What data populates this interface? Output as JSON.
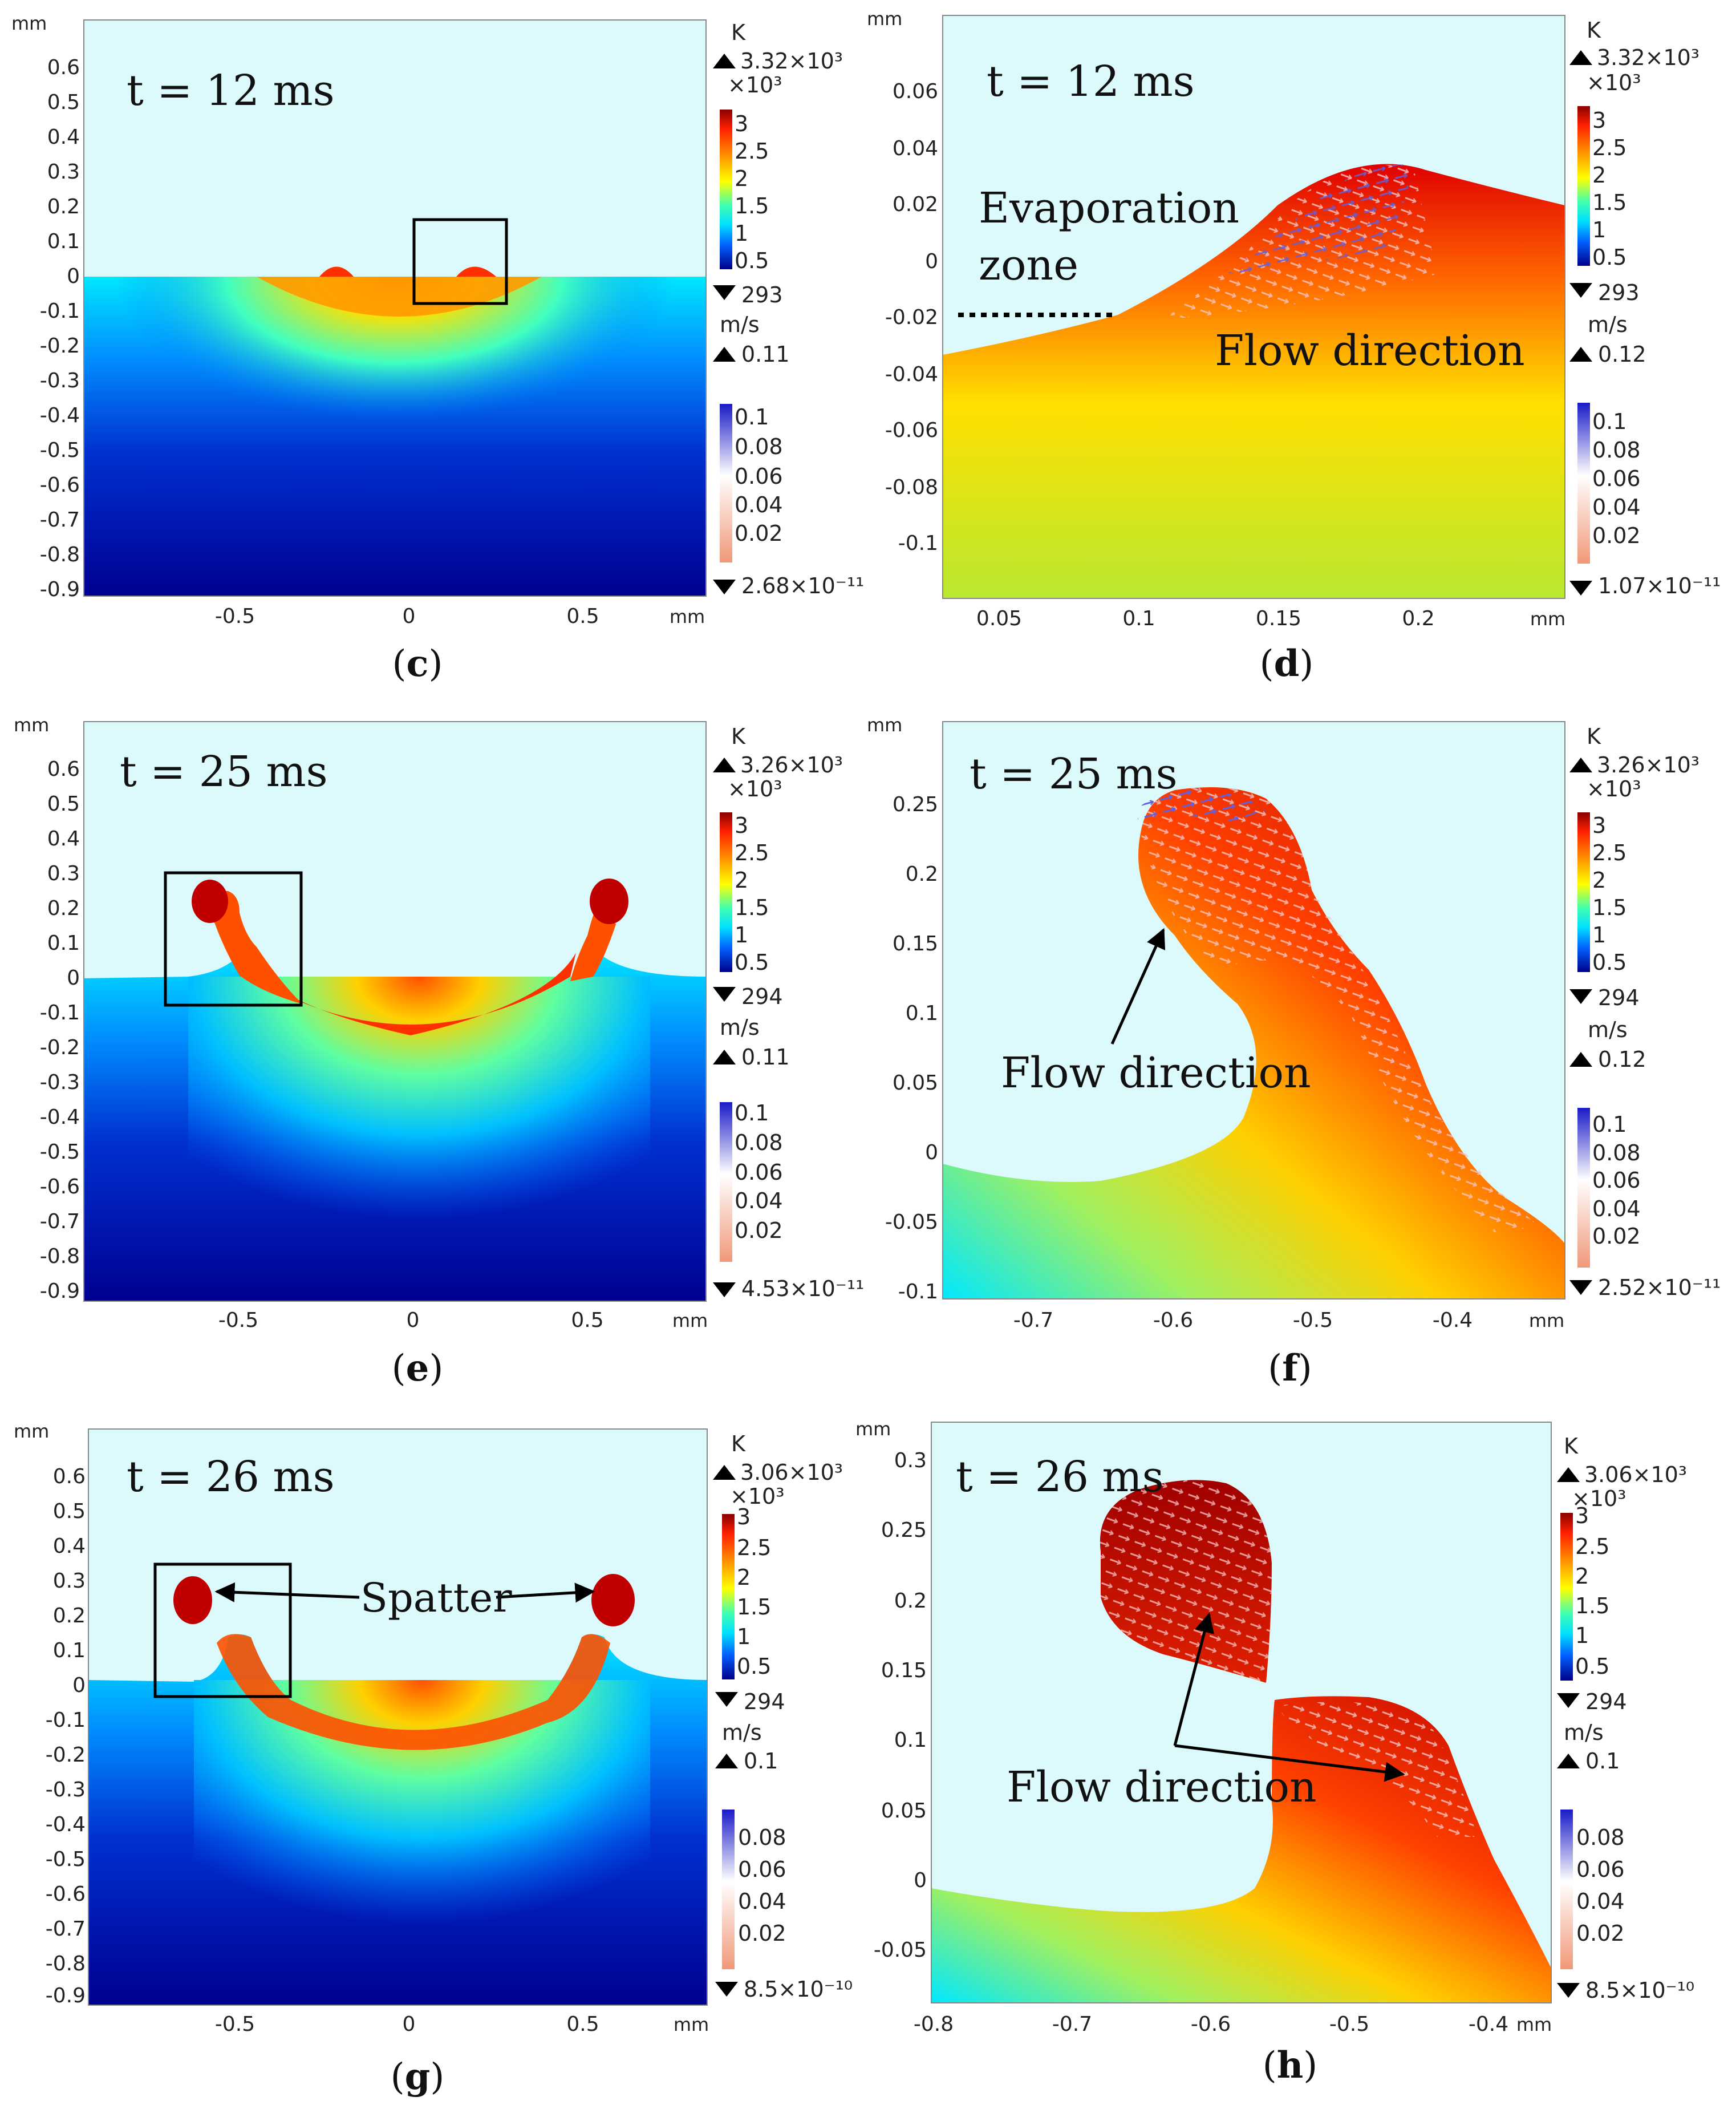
{
  "panels": [
    {
      "id": "c",
      "caption_open": "(",
      "caption_letter": "c",
      "caption_close": ")",
      "time_label": "t = 12 ms",
      "y_unit": "mm",
      "x_unit": "mm",
      "y_ticks": [
        "0.6",
        "0.5",
        "0.4",
        "0.3",
        "0.2",
        "0.1",
        "0",
        "-0.1",
        "-0.2",
        "-0.3",
        "-0.4",
        "-0.5",
        "-0.6",
        "-0.7",
        "-0.8",
        "-0.9"
      ],
      "x_ticks": [
        "-0.5",
        "0",
        "0.5"
      ],
      "temp_unit": "K",
      "temp_max": "3.32×10³",
      "temp_scale": "×10³",
      "temp_ticks": [
        "3",
        "2.5",
        "2",
        "1.5",
        "1",
        "0.5"
      ],
      "temp_min": "293",
      "vel_unit": "m/s",
      "vel_max": "0.11",
      "vel_ticks": [
        "0.1",
        "0.08",
        "0.06",
        "0.04",
        "0.02"
      ],
      "vel_min": "2.68×10⁻¹¹"
    },
    {
      "id": "d",
      "caption_open": "(",
      "caption_letter": "d",
      "caption_close": ")",
      "time_label": "t = 12 ms",
      "y_unit": "mm",
      "x_unit": "mm",
      "y_ticks": [
        "0.06",
        "0.04",
        "0.02",
        "0",
        "-0.02",
        "-0.04",
        "-0.06",
        "-0.08",
        "-0.1"
      ],
      "x_ticks": [
        "0.05",
        "0.1",
        "0.15",
        "0.2"
      ],
      "temp_unit": "K",
      "temp_max": "3.32×10³",
      "temp_scale": "×10³",
      "temp_ticks": [
        "3",
        "2.5",
        "2",
        "1.5",
        "1",
        "0.5"
      ],
      "temp_min": "293",
      "vel_unit": "m/s",
      "vel_max": "0.12",
      "vel_ticks": [
        "0.1",
        "0.08",
        "0.06",
        "0.04",
        "0.02"
      ],
      "vel_min": "1.07×10⁻¹¹",
      "annotations": {
        "evap_line1": "Evaporation",
        "evap_line2": "zone",
        "flow": "Flow direction"
      }
    },
    {
      "id": "e",
      "caption_open": "(",
      "caption_letter": "e",
      "caption_close": ")",
      "time_label": "t = 25 ms",
      "y_unit": "mm",
      "x_unit": "mm",
      "y_ticks": [
        "0.6",
        "0.5",
        "0.4",
        "0.3",
        "0.2",
        "0.1",
        "0",
        "-0.1",
        "-0.2",
        "-0.3",
        "-0.4",
        "-0.5",
        "-0.6",
        "-0.7",
        "-0.8",
        "-0.9"
      ],
      "x_ticks": [
        "-0.5",
        "0",
        "0.5"
      ],
      "temp_unit": "K",
      "temp_max": "3.26×10³",
      "temp_scale": "×10³",
      "temp_ticks": [
        "3",
        "2.5",
        "2",
        "1.5",
        "1",
        "0.5"
      ],
      "temp_min": "294",
      "vel_unit": "m/s",
      "vel_max": "0.11",
      "vel_ticks": [
        "0.1",
        "0.08",
        "0.06",
        "0.04",
        "0.02"
      ],
      "vel_min": "4.53×10⁻¹¹"
    },
    {
      "id": "f",
      "caption_open": "(",
      "caption_letter": "f",
      "caption_close": ")",
      "time_label": "t = 25 ms",
      "y_unit": "mm",
      "x_unit": "mm",
      "y_ticks": [
        "0.25",
        "0.2",
        "0.15",
        "0.1",
        "0.05",
        "0",
        "-0.05",
        "-0.1"
      ],
      "x_ticks": [
        "-0.7",
        "-0.6",
        "-0.5",
        "-0.4"
      ],
      "temp_unit": "K",
      "temp_max": "3.26×10³",
      "temp_scale": "×10³",
      "temp_ticks": [
        "3",
        "2.5",
        "2",
        "1.5",
        "1",
        "0.5"
      ],
      "temp_min": "294",
      "vel_unit": "m/s",
      "vel_max": "0.12",
      "vel_ticks": [
        "0.1",
        "0.08",
        "0.06",
        "0.04",
        "0.02"
      ],
      "vel_min": "2.52×10⁻¹¹",
      "annotations": {
        "flow": "Flow direction"
      }
    },
    {
      "id": "g",
      "caption_open": "(",
      "caption_letter": "g",
      "caption_close": ")",
      "time_label": "t = 26 ms",
      "y_unit": "mm",
      "x_unit": "mm",
      "y_ticks": [
        "0.6",
        "0.5",
        "0.4",
        "0.3",
        "0.2",
        "0.1",
        "0",
        "-0.1",
        "-0.2",
        "-0.3",
        "-0.4",
        "-0.5",
        "-0.6",
        "-0.7",
        "-0.8",
        "-0.9"
      ],
      "x_ticks": [
        "-0.5",
        "0",
        "0.5"
      ],
      "temp_unit": "K",
      "temp_max": "3.06×10³",
      "temp_scale": "×10³",
      "temp_ticks": [
        "3",
        "2.5",
        "2",
        "1.5",
        "1",
        "0.5"
      ],
      "temp_min": "294",
      "vel_unit": "m/s",
      "vel_max": "0.1",
      "vel_ticks": [
        "0.08",
        "0.06",
        "0.04",
        "0.02"
      ],
      "vel_min": "8.5×10⁻¹⁰",
      "annotations": {
        "spatter": "Spatter"
      }
    },
    {
      "id": "h",
      "caption_open": "(",
      "caption_letter": "h",
      "caption_close": ")",
      "time_label": "t = 26 ms",
      "y_unit": "mm",
      "x_unit": "mm",
      "y_ticks": [
        "0.3",
        "0.25",
        "0.2",
        "0.15",
        "0.1",
        "0.05",
        "0",
        "-0.05"
      ],
      "x_ticks": [
        "-0.8",
        "-0.7",
        "-0.6",
        "-0.5",
        "-0.4"
      ],
      "temp_unit": "K",
      "temp_max": "3.06×10³",
      "temp_scale": "×10³",
      "temp_ticks": [
        "3",
        "2.5",
        "2",
        "1.5",
        "1",
        "0.5"
      ],
      "temp_min": "294",
      "vel_unit": "m/s",
      "vel_max": "0.1",
      "vel_ticks": [
        "0.08",
        "0.06",
        "0.04",
        "0.02"
      ],
      "vel_min": "8.5×10⁻¹⁰",
      "annotations": {
        "flow": "Flow direction"
      }
    }
  ],
  "colors": {
    "gas": "#dcfafc",
    "temp_scale": [
      "#ff0000",
      "#ff8000",
      "#ffff00",
      "#00ffff",
      "#0080ff",
      "#00008f"
    ],
    "vel_scale": [
      "#2020c8",
      "#ffffff",
      "#f0a080"
    ]
  }
}
